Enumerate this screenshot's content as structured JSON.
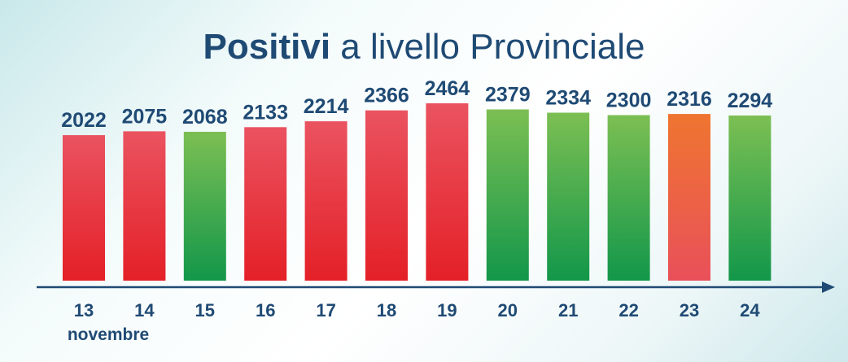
{
  "chart_data": {
    "type": "bar",
    "title_bold": "Positivi",
    "title_rest": " a livello Provinciale",
    "x_unit_label": "novembre",
    "categories": [
      "13",
      "14",
      "15",
      "16",
      "17",
      "18",
      "19",
      "20",
      "21",
      "22",
      "23",
      "24"
    ],
    "values": [
      2022,
      2075,
      2068,
      2133,
      2214,
      2366,
      2464,
      2379,
      2334,
      2300,
      2316,
      2294
    ],
    "bar_colors": [
      "red",
      "red",
      "green",
      "red",
      "red",
      "red",
      "red",
      "green",
      "green",
      "green",
      "orange",
      "green"
    ],
    "ylim": [
      0,
      2464
    ],
    "grid": false,
    "legend": "none"
  },
  "colors": {
    "red_top": "#ea5360",
    "red_bottom": "#e42027",
    "green_top": "#7cbf53",
    "green_bottom": "#12974a",
    "orange_top": "#ef7530",
    "orange_bottom": "#e9505a",
    "axis": "#1f4a74",
    "text": "#1f4a74"
  }
}
